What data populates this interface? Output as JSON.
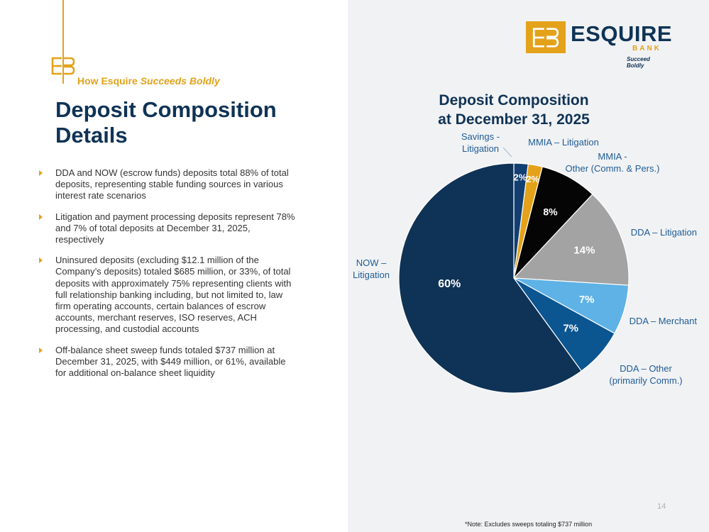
{
  "slide": {
    "tagline_prefix": "How Esquire ",
    "tagline_italic": "Succeeds Boldly",
    "title": "Deposit Composition Details",
    "page_number": "14",
    "footnote": "*Note: Excludes sweeps totaling $737 million"
  },
  "logo": {
    "name": "ESQUIRE",
    "sub": "BANK",
    "tag": "Succeed Boldly",
    "color_gold": "#e3a21a",
    "color_navy": "#0f3356"
  },
  "bullets": [
    "DDA and NOW (escrow funds) deposits total 88% of total deposits, representing stable funding sources in various interest rate scenarios",
    "Litigation and payment processing deposits represent 78% and 7% of total deposits at December 31, 2025, respectively",
    "Uninsured deposits (excluding $12.1 million of the Company’s deposits) totaled $685 million, or 33%, of total deposits with approximately 75% representing clients with full relationship banking including, but not limited to, law firm operating accounts, certain balances of escrow accounts, merchant reserves, ISO reserves, ACH processing, and custodial accounts",
    "Off-balance sheet sweep funds totaled $737 million at December 31, 2025, with $449 million, or 61%, available for additional on-balance sheet liquidity"
  ],
  "chart_data": {
    "type": "pie",
    "title_lines": [
      "Deposit Composition",
      "at December 31, 2025"
    ],
    "slices": [
      {
        "label_lines": [
          "Savings -",
          "Litigation"
        ],
        "value": 2,
        "value_label": "2%",
        "color": "#123f72"
      },
      {
        "label_lines": [
          "MMIA – Litigation"
        ],
        "value": 2,
        "value_label": "2%",
        "color": "#e3a21a"
      },
      {
        "label_lines": [
          "MMIA -",
          "Other (Comm. & Pers.)"
        ],
        "value": 8,
        "value_label": "8%",
        "color": "#050505"
      },
      {
        "label_lines": [
          "DDA – Litigation"
        ],
        "value": 14,
        "value_label": "14%",
        "color": "#a3a3a3"
      },
      {
        "label_lines": [
          "DDA – Merchant"
        ],
        "value": 7,
        "value_label": "7%",
        "color": "#5eb2e5"
      },
      {
        "label_lines": [
          "DDA – Other",
          "(primarily Comm.)"
        ],
        "value": 7,
        "value_label": "7%",
        "color": "#0b5591"
      },
      {
        "label_lines": [
          "NOW –",
          "Litigation"
        ],
        "value": 60,
        "value_label": "60%",
        "color": "#0f3356"
      }
    ],
    "legend": "none"
  }
}
